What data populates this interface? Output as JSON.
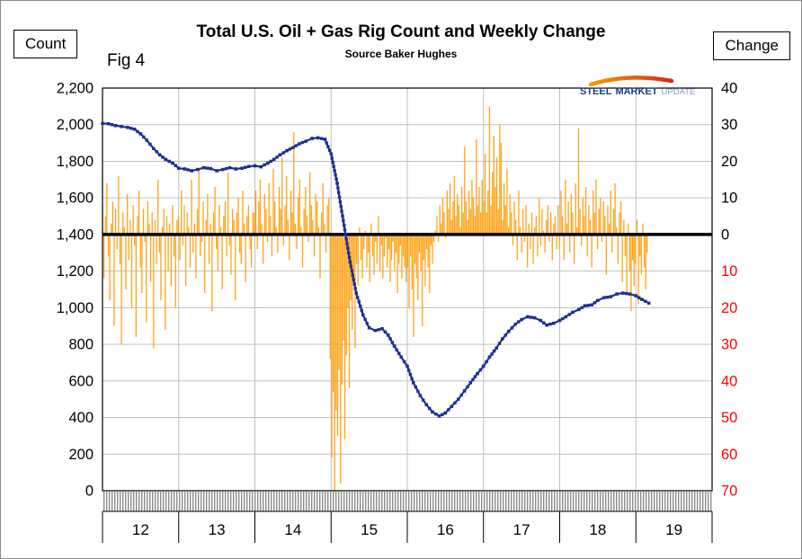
{
  "header": {
    "fig_label": "Fig 4"
  },
  "logo": {
    "steel": "STEEL",
    "market": "MARKET",
    "update": "UPDATE",
    "swoosh_color_left": "#f59b00",
    "swoosh_color_right": "#d62718",
    "text_color_dark": "#1b3f7e",
    "text_color_light": "#7d9bc4"
  },
  "chart_data": {
    "type": "bar",
    "subtype": "combo_bar_line_dual_axis",
    "title": "Total U.S. Oil + Gas Rig Count and Weekly Change",
    "subtitle": "Source Baker Hughes",
    "grid": "on",
    "legend_position": "none",
    "left_axis": {
      "title": "Count",
      "min": 0,
      "max": 2200,
      "step": 200,
      "tick_labels": [
        "2,200",
        "2,000",
        "1,800",
        "1,600",
        "1,400",
        "1,200",
        "1,000",
        "800",
        "600",
        "400",
        "200",
        "0"
      ]
    },
    "right_axis": {
      "title": "Change",
      "max": 40,
      "min": -70,
      "step": 10,
      "zero_count_equiv": 1400,
      "count_per_unit": 20,
      "positive_color": "#000000",
      "negative_color": "#ff0000",
      "note": "negative values shown red without minus sign; axis inverted pairing with left axis (0 change aligns with 1400 count)"
    },
    "x_axis": {
      "start": 2012,
      "end": 2020,
      "labels": [
        "12",
        "13",
        "14",
        "15",
        "16",
        "17",
        "18",
        "19"
      ]
    },
    "zero_change_line": {
      "count_value": 1400,
      "color": "#000000"
    },
    "line_series": {
      "name": "Total U.S. oil + gas rig count",
      "color": "#1e2f97",
      "points": [
        [
          2012.0,
          2007
        ],
        [
          2012.08,
          2005
        ],
        [
          2012.17,
          1995
        ],
        [
          2012.25,
          1990
        ],
        [
          2012.33,
          1985
        ],
        [
          2012.42,
          1975
        ],
        [
          2012.5,
          1950
        ],
        [
          2012.58,
          1915
        ],
        [
          2012.67,
          1870
        ],
        [
          2012.75,
          1835
        ],
        [
          2012.83,
          1810
        ],
        [
          2012.92,
          1790
        ],
        [
          2013.0,
          1762
        ],
        [
          2013.08,
          1758
        ],
        [
          2013.17,
          1748
        ],
        [
          2013.25,
          1755
        ],
        [
          2013.33,
          1765
        ],
        [
          2013.42,
          1760
        ],
        [
          2013.5,
          1748
        ],
        [
          2013.58,
          1755
        ],
        [
          2013.67,
          1765
        ],
        [
          2013.75,
          1758
        ],
        [
          2013.83,
          1762
        ],
        [
          2013.92,
          1772
        ],
        [
          2014.0,
          1775
        ],
        [
          2014.08,
          1770
        ],
        [
          2014.17,
          1790
        ],
        [
          2014.25,
          1810
        ],
        [
          2014.33,
          1835
        ],
        [
          2014.42,
          1858
        ],
        [
          2014.5,
          1875
        ],
        [
          2014.58,
          1895
        ],
        [
          2014.67,
          1910
        ],
        [
          2014.75,
          1925
        ],
        [
          2014.83,
          1928
        ],
        [
          2014.92,
          1920
        ],
        [
          2015.0,
          1840
        ],
        [
          2015.08,
          1680
        ],
        [
          2015.17,
          1450
        ],
        [
          2015.25,
          1250
        ],
        [
          2015.33,
          1080
        ],
        [
          2015.42,
          960
        ],
        [
          2015.5,
          890
        ],
        [
          2015.58,
          875
        ],
        [
          2015.67,
          885
        ],
        [
          2015.75,
          850
        ],
        [
          2015.83,
          790
        ],
        [
          2015.92,
          730
        ],
        [
          2016.0,
          680
        ],
        [
          2016.08,
          590
        ],
        [
          2016.17,
          520
        ],
        [
          2016.25,
          470
        ],
        [
          2016.33,
          430
        ],
        [
          2016.42,
          408
        ],
        [
          2016.5,
          425
        ],
        [
          2016.58,
          460
        ],
        [
          2016.67,
          500
        ],
        [
          2016.75,
          545
        ],
        [
          2016.83,
          590
        ],
        [
          2016.92,
          640
        ],
        [
          2017.0,
          680
        ],
        [
          2017.08,
          730
        ],
        [
          2017.17,
          780
        ],
        [
          2017.25,
          830
        ],
        [
          2017.33,
          870
        ],
        [
          2017.42,
          910
        ],
        [
          2017.5,
          935
        ],
        [
          2017.58,
          950
        ],
        [
          2017.67,
          945
        ],
        [
          2017.75,
          930
        ],
        [
          2017.83,
          905
        ],
        [
          2017.92,
          915
        ],
        [
          2018.0,
          930
        ],
        [
          2018.08,
          950
        ],
        [
          2018.17,
          975
        ],
        [
          2018.25,
          990
        ],
        [
          2018.33,
          1010
        ],
        [
          2018.42,
          1015
        ],
        [
          2018.5,
          1040
        ],
        [
          2018.58,
          1055
        ],
        [
          2018.67,
          1060
        ],
        [
          2018.75,
          1075
        ],
        [
          2018.83,
          1080
        ],
        [
          2018.92,
          1075
        ],
        [
          2019.0,
          1065
        ],
        [
          2019.08,
          1045
        ],
        [
          2019.17,
          1025
        ]
      ]
    },
    "bar_series": {
      "name": "Weekly change in rig count",
      "color": "#ffa317",
      "start_x": 2012.0,
      "interval": "weekly",
      "values": [
        8,
        -12,
        5,
        14,
        -6,
        -18,
        3,
        9,
        -25,
        7,
        -4,
        16,
        -8,
        -30,
        6,
        2,
        -15,
        11,
        -7,
        4,
        -20,
        8,
        -3,
        -28,
        5,
        12,
        -9,
        -16,
        7,
        -2,
        -24,
        9,
        3,
        -13,
        6,
        -31,
        4,
        -8,
        15,
        -5,
        -18,
        2,
        7,
        -26,
        5,
        -10,
        3,
        -14,
        8,
        -6,
        -20,
        4,
        5,
        -7,
        12,
        -3,
        8,
        -14,
        6,
        2,
        -9,
        15,
        -5,
        3,
        -12,
        7,
        18,
        -6,
        -2,
        9,
        -16,
        4,
        11,
        -8,
        3,
        -21,
        6,
        13,
        -4,
        -10,
        8,
        2,
        -15,
        5,
        9,
        -6,
        17,
        -3,
        -11,
        7,
        4,
        -18,
        6,
        10,
        -5,
        -8,
        12,
        3,
        -13,
        5,
        8,
        -4,
        -9,
        6,
        6,
        12,
        -4,
        9,
        15,
        3,
        -8,
        11,
        7,
        -2,
        14,
        5,
        -6,
        18,
        9,
        2,
        -5,
        13,
        7,
        21,
        -3,
        8,
        16,
        4,
        -7,
        12,
        6,
        28,
        3,
        -4,
        10,
        15,
        2,
        -9,
        7,
        13,
        5,
        -2,
        17,
        8,
        4,
        -6,
        11,
        9,
        2,
        -12,
        6,
        14,
        3,
        -5,
        8,
        10,
        -34,
        -61,
        -43,
        -70,
        -48,
        -55,
        -37,
        -68,
        -41,
        -29,
        -56,
        -33,
        -20,
        -42,
        -18,
        -26,
        -11,
        -31,
        -8,
        -14,
        2,
        -7,
        -12,
        -4,
        1,
        -9,
        -5,
        -13,
        3,
        -6,
        -11,
        -2,
        -8,
        5,
        -10,
        -3,
        -12,
        -6,
        -1,
        -9,
        -4,
        -13,
        -7,
        -2,
        -10,
        -5,
        -16,
        -8,
        -3,
        -12,
        -6,
        -9,
        -13,
        -9,
        -20,
        -6,
        -15,
        -28,
        -8,
        -12,
        -18,
        -5,
        -10,
        -25,
        -7,
        -14,
        -4,
        -9,
        -16,
        -3,
        -8,
        -2,
        1,
        5,
        -2,
        8,
        3,
        10,
        6,
        -1,
        12,
        7,
        14,
        4,
        9,
        16,
        5,
        11,
        8,
        2,
        13,
        6,
        24,
        9,
        4,
        12,
        7,
        15,
        10,
        5,
        26,
        8,
        13,
        6,
        15,
        9,
        22,
        6,
        12,
        35,
        8,
        17,
        27,
        13,
        21,
        7,
        30,
        25,
        4,
        14,
        8,
        18,
        2,
        11,
        6,
        -3,
        9,
        4,
        -7,
        12,
        2,
        -5,
        7,
        -2,
        8,
        -9,
        3,
        -4,
        6,
        -8,
        2,
        5,
        -6,
        10,
        -3,
        7,
        1,
        -5,
        4,
        8,
        -2,
        6,
        -7,
        3,
        5,
        -4,
        8,
        -4,
        12,
        5,
        -7,
        15,
        3,
        9,
        -5,
        11,
        6,
        -8,
        14,
        2,
        29,
        7,
        -3,
        10,
        5,
        13,
        -6,
        8,
        4,
        -9,
        12,
        6,
        15,
        -4,
        7,
        10,
        -2,
        9,
        5,
        -11,
        8,
        3,
        12,
        -5,
        7,
        14,
        2,
        -8,
        6,
        9,
        -13,
        4,
        -6,
        -16,
        3,
        -10,
        -21,
        -7,
        -14,
        -8,
        4,
        -19,
        -6,
        -11,
        3,
        -9,
        -15,
        -5
      ]
    }
  }
}
